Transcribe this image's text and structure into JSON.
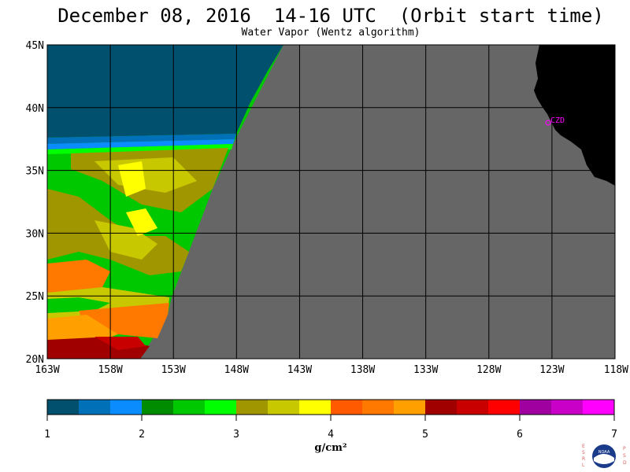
{
  "header": {
    "title": "December 08, 2016  14-16 UTC  (Orbit start time)",
    "subtitle": "Water Vapor (Wentz algorithm)"
  },
  "map": {
    "lat_range": [
      20,
      45
    ],
    "lon_range": [
      -163,
      -118
    ],
    "lat_ticks": [
      "45N",
      "40N",
      "35N",
      "30N",
      "25N",
      "20N"
    ],
    "lon_ticks": [
      "163W",
      "158W",
      "153W",
      "148W",
      "143W",
      "138W",
      "133W",
      "128W",
      "123W",
      "118W"
    ],
    "station_label": "CZD",
    "colors": {
      "no_data": "#666666",
      "land": "#000000",
      "station": "#ff00ff",
      "grid": "#000000"
    }
  },
  "colorbar": {
    "tick_labels": [
      "1",
      "2",
      "3",
      "4",
      "5",
      "6",
      "7"
    ],
    "unit": "g/cm²",
    "bins": [
      "#00506e",
      "#0070b8",
      "#0a8cff",
      "#008c00",
      "#00c800",
      "#00ff00",
      "#a09600",
      "#c8c800",
      "#ffff00",
      "#ff5a00",
      "#ff7800",
      "#ffa000",
      "#a00000",
      "#c80000",
      "#ff0000",
      "#a000a0",
      "#c800c8",
      "#ff00ff"
    ]
  },
  "logo": {
    "left_letters": [
      "E",
      "S",
      "R",
      "L"
    ],
    "right_letters": [
      "P",
      "S",
      "D"
    ],
    "center_text": "NOAA"
  }
}
